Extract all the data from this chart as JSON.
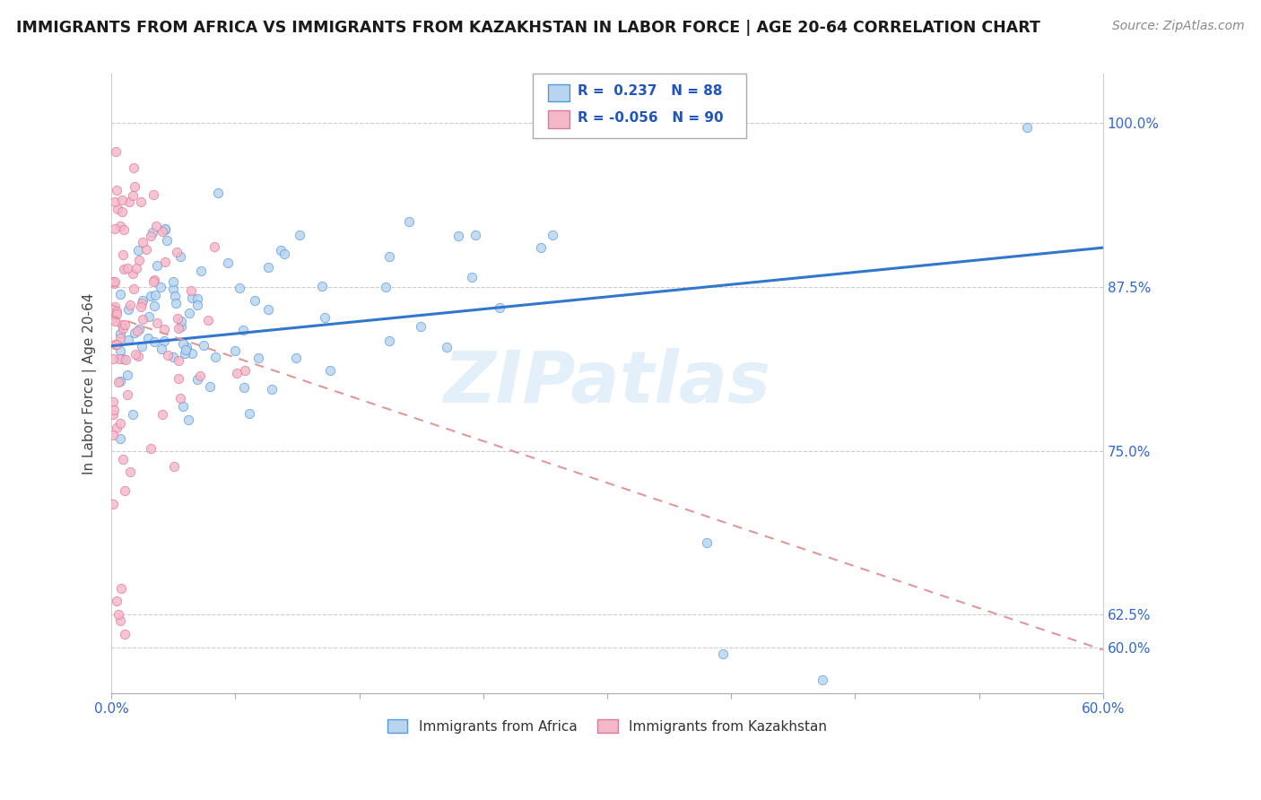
{
  "title": "IMMIGRANTS FROM AFRICA VS IMMIGRANTS FROM KAZAKHSTAN IN LABOR FORCE | AGE 20-64 CORRELATION CHART",
  "source": "Source: ZipAtlas.com",
  "ylabel": "In Labor Force | Age 20-64",
  "legend_labels": [
    "Immigrants from Africa",
    "Immigrants from Kazakhstan"
  ],
  "r_africa": 0.237,
  "n_africa": 88,
  "r_kazakhstan": -0.056,
  "n_kazakhstan": 90,
  "color_africa_fill": "#b8d4f0",
  "color_africa_edge": "#5599dd",
  "color_kazakhstan_fill": "#f5b8c8",
  "color_kazakhstan_edge": "#dd7799",
  "color_africa_line": "#3377cc",
  "color_kazakhstan_line": "#dd9999",
  "right_yticks": [
    0.6,
    0.625,
    0.75,
    0.875,
    1.0
  ],
  "right_yticklabels": [
    "60.0%",
    "62.5%",
    "75.0%",
    "87.5%",
    "100.0%"
  ],
  "xmin": 0.0,
  "xmax": 0.6,
  "ymin": 0.565,
  "ymax": 1.038,
  "watermark_text": "ZIPatlas",
  "africa_line_y0": 0.83,
  "africa_line_y1": 0.905,
  "kazakhstan_line_y0": 0.853,
  "kazakhstan_line_y1": 0.598
}
